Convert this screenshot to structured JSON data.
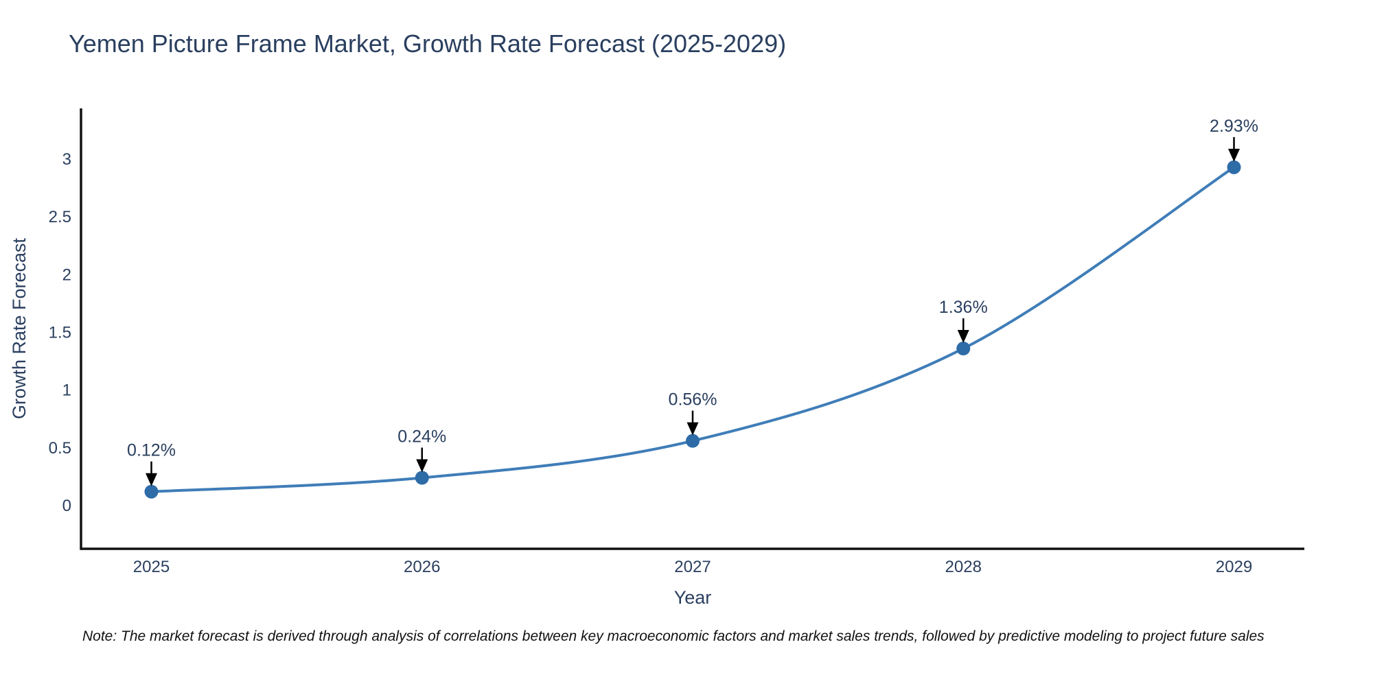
{
  "chart_data": {
    "type": "line",
    "title": "Yemen Picture Frame Market, Growth Rate Forecast (2025-2029)",
    "xlabel": "Year",
    "ylabel": "Growth Rate Forecast",
    "x": [
      2025,
      2026,
      2027,
      2028,
      2029
    ],
    "y": [
      0.12,
      0.24,
      0.56,
      1.36,
      2.93
    ],
    "point_labels": [
      "0.12%",
      "0.24%",
      "0.56%",
      "1.36%",
      "2.93%"
    ],
    "xtick_labels": [
      "2025",
      "2026",
      "2027",
      "2028",
      "2029"
    ],
    "ytick_values": [
      0,
      0.5,
      1,
      1.5,
      2,
      2.5,
      3
    ],
    "ytick_labels": [
      "0",
      "0.5",
      "1",
      "1.5",
      "2",
      "2.5",
      "3"
    ],
    "xlim": [
      2024.74,
      2029.26
    ],
    "ylim": [
      -0.375,
      3.44
    ],
    "grid": false,
    "legend": "none",
    "line_color": "#3f7db8",
    "marker_color": "#2e6ca8",
    "axis_color": "#111111",
    "tick_color": "#2a3f5f",
    "annotation_text_color": "#2a3f5f",
    "annotation_arrow_color": "#000000",
    "curve_style": "spline"
  },
  "footnote": "Note: The market forecast is derived through analysis of correlations between key macroeconomic factors and market sales trends, followed by predictive modeling to project future sales"
}
